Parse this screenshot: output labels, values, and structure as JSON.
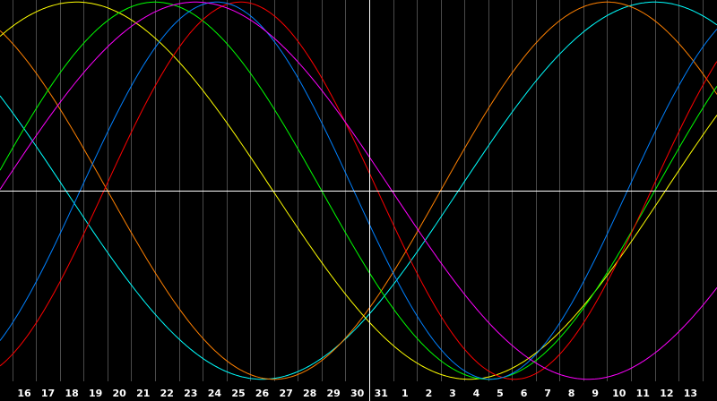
{
  "chart_data": {
    "type": "line",
    "title": "",
    "xlabel": "",
    "ylabel": "",
    "x_tick_labels": [
      "16",
      "17",
      "18",
      "19",
      "20",
      "21",
      "22",
      "23",
      "24",
      "25",
      "26",
      "27",
      "28",
      "29",
      "30",
      "31",
      "1",
      "2",
      "3",
      "4",
      "5",
      "6",
      "7",
      "8",
      "9",
      "10",
      "11",
      "12",
      "13"
    ],
    "grid": "vertical",
    "legend": "none",
    "background": "#000000",
    "ylim": [
      -1,
      1
    ],
    "reference_lines": {
      "day_index": 14.5,
      "y_value": 0
    },
    "series": [
      {
        "color": "#00ffff",
        "shape": "sine",
        "period_days": 33,
        "trough_day_index": 10.0,
        "amplitude": 0.98
      },
      {
        "color": "#ff8000",
        "shape": "sine",
        "period_days": 28,
        "trough_day_index": 10.5,
        "amplitude": 0.98
      },
      {
        "color": "#ffff00",
        "shape": "sine",
        "period_days": 33,
        "trough_day_index": 18.7,
        "amplitude": 0.98
      },
      {
        "color": "#00ff00",
        "shape": "sine",
        "period_days": 28,
        "trough_day_index": 19.5,
        "amplitude": 0.98
      },
      {
        "color": "#ff0000",
        "shape": "sine",
        "period_days": 23,
        "trough_day_index": 20.6,
        "amplitude": 0.98
      },
      {
        "color": "#0080ff",
        "shape": "sine",
        "period_days": 23,
        "trough_day_index": 19.6,
        "amplitude": 0.98
      },
      {
        "color": "#ff00ff",
        "shape": "sine",
        "period_days": 33,
        "trough_day_index": 23.7,
        "amplitude": 0.98
      }
    ]
  }
}
